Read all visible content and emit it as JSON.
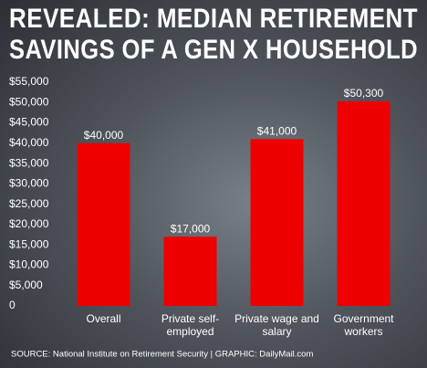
{
  "chart_data": {
    "type": "bar",
    "title": [
      "REVEALED: MEDIAN RETIREMENT",
      "SAVINGS OF A GEN X HOUSEHOLD"
    ],
    "categories": [
      "Overall",
      "Private self-employed",
      "Private wage and salary",
      "Government workers"
    ],
    "values": [
      40000,
      17000,
      41000,
      50300
    ],
    "value_labels": [
      "$40,000",
      "$17,000",
      "$41,000",
      "$50,300"
    ],
    "color": "#ee0000",
    "ylim": [
      0,
      55000
    ],
    "yticks": [
      0,
      {
        "value": 5000,
        "label": "$5,000"
      },
      {
        "value": 10000,
        "label": "$10,000"
      },
      {
        "value": 15000,
        "label": "$15,000"
      },
      {
        "value": 20000,
        "label": "$20,000"
      },
      {
        "value": 25000,
        "label": "$25,000"
      },
      {
        "value": 30000,
        "label": "$30,000"
      },
      {
        "value": 35000,
        "label": "$35,000"
      },
      {
        "value": 40000,
        "label": "$40,000"
      },
      {
        "value": 45000,
        "label": "$45,000"
      },
      {
        "value": 50000,
        "label": "$50,000"
      },
      {
        "value": 55000,
        "label": "$55,000"
      }
    ],
    "grid": false,
    "source": "SOURCE: National Institute on Retirement Security  |  GRAPHIC: DailyMail.com"
  }
}
